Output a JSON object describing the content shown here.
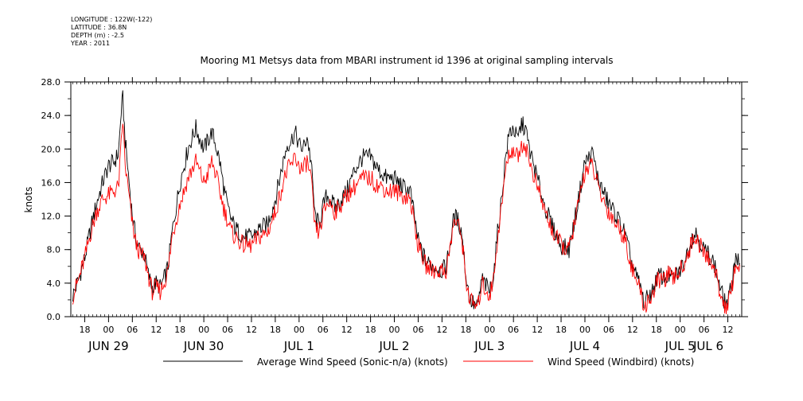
{
  "meta": {
    "longitude": "LONGITUDE : 122W(-122)",
    "latitude": "LATITUDE : 36.8N",
    "depth": "DEPTH (m) : -2.5",
    "year": "YEAR : 2011"
  },
  "chart_data": {
    "type": "line",
    "title": "Mooring M1 Metsys data from MBARI instrument id 1396 at original sampling intervals",
    "ylabel": "knots",
    "xlabel": "",
    "ylim": [
      0,
      28
    ],
    "yticks": [
      0,
      4,
      8,
      12,
      16,
      20,
      24,
      28
    ],
    "ytick_labels": [
      "0.0",
      "4.0",
      "8.0",
      "12.0",
      "16.0",
      "20.0",
      "24.0",
      "28.0"
    ],
    "x_unit": "hours since JUN 29 00:00 (2011)",
    "xlim": [
      -9.5,
      159.5
    ],
    "xticks": [
      {
        "x": -6,
        "label": "18"
      },
      {
        "x": 0,
        "label": "00"
      },
      {
        "x": 6,
        "label": "06"
      },
      {
        "x": 12,
        "label": "12"
      },
      {
        "x": 18,
        "label": "18"
      },
      {
        "x": 24,
        "label": "00"
      },
      {
        "x": 30,
        "label": "06"
      },
      {
        "x": 36,
        "label": "12"
      },
      {
        "x": 42,
        "label": "18"
      },
      {
        "x": 48,
        "label": "00"
      },
      {
        "x": 54,
        "label": "06"
      },
      {
        "x": 60,
        "label": "12"
      },
      {
        "x": 66,
        "label": "18"
      },
      {
        "x": 72,
        "label": "00"
      },
      {
        "x": 78,
        "label": "06"
      },
      {
        "x": 84,
        "label": "12"
      },
      {
        "x": 90,
        "label": "18"
      },
      {
        "x": 96,
        "label": "00"
      },
      {
        "x": 102,
        "label": "06"
      },
      {
        "x": 108,
        "label": "12"
      },
      {
        "x": 114,
        "label": "18"
      },
      {
        "x": 120,
        "label": "00"
      },
      {
        "x": 126,
        "label": "06"
      },
      {
        "x": 132,
        "label": "12"
      },
      {
        "x": 138,
        "label": "18"
      },
      {
        "x": 144,
        "label": "00"
      },
      {
        "x": 150,
        "label": "06"
      },
      {
        "x": 156,
        "label": "12"
      }
    ],
    "date_labels": [
      {
        "x": 0,
        "label": "JUN 29"
      },
      {
        "x": 24,
        "label": "JUN 30"
      },
      {
        "x": 48,
        "label": "JUL  1"
      },
      {
        "x": 72,
        "label": "JUL  2"
      },
      {
        "x": 96,
        "label": "JUL  3"
      },
      {
        "x": 120,
        "label": "JUL  4"
      },
      {
        "x": 144,
        "label": "JUL  5"
      },
      {
        "x": 168,
        "label": "JUL  6"
      }
    ],
    "series": [
      {
        "name": "Average Wind Speed (Sonic-n/a) (knots)",
        "color": "#000000",
        "x": [
          -9,
          -7.5,
          -6,
          -4.5,
          -3,
          -1.5,
          0,
          1.5,
          2.5,
          3.2,
          3.6,
          4.2,
          5,
          6,
          7,
          8,
          9,
          10,
          11,
          12,
          13,
          14,
          15,
          16,
          18,
          20,
          22,
          24,
          25,
          26,
          27,
          28,
          29,
          30,
          31,
          32,
          34,
          36,
          38,
          40,
          42,
          44,
          45,
          46,
          47,
          48,
          49,
          50,
          51,
          52,
          53,
          54,
          55,
          56,
          57,
          58,
          60,
          62,
          64,
          66,
          68,
          69,
          70,
          72,
          74,
          76,
          78,
          80,
          82,
          84,
          85,
          86,
          87,
          88,
          89,
          90,
          91,
          92,
          93,
          94,
          96,
          97,
          98,
          99,
          100,
          101,
          102,
          103,
          104,
          105,
          106,
          108,
          110,
          112,
          114,
          116,
          118,
          120,
          122,
          123,
          124,
          125,
          126,
          128,
          130,
          132,
          134,
          135,
          136,
          137,
          138,
          139,
          140,
          141,
          142,
          143,
          144,
          145,
          146,
          147,
          148,
          149,
          150,
          151,
          152,
          153,
          154,
          155,
          156,
          157,
          158,
          159
        ],
        "values": [
          2.5,
          4.5,
          7.0,
          10.5,
          13.5,
          16.0,
          18.0,
          18.5,
          19.5,
          24.5,
          26.0,
          21.0,
          17.0,
          12.0,
          9.0,
          8.0,
          7.5,
          5.0,
          3.5,
          4.0,
          3.5,
          4.5,
          6.0,
          10.0,
          16.0,
          20.0,
          22.5,
          20.0,
          21.0,
          22.0,
          20.5,
          18.5,
          15.5,
          13.0,
          11.5,
          10.5,
          9.5,
          9.5,
          10.5,
          11.0,
          14.0,
          18.5,
          20.5,
          21.0,
          22.0,
          20.5,
          20.0,
          21.5,
          18.5,
          12.0,
          11.0,
          13.0,
          14.5,
          14.0,
          13.0,
          13.5,
          15.0,
          17.5,
          19.0,
          19.0,
          17.5,
          17.0,
          16.5,
          16.5,
          15.5,
          15.0,
          9.0,
          6.5,
          6.0,
          5.5,
          6.0,
          8.5,
          12.0,
          11.5,
          10.0,
          5.0,
          2.0,
          1.5,
          1.0,
          4.5,
          3.0,
          5.0,
          10.0,
          14.0,
          19.0,
          22.0,
          22.5,
          21.0,
          23.0,
          22.5,
          20.0,
          16.5,
          13.0,
          10.5,
          8.5,
          8.0,
          13.0,
          18.5,
          19.5,
          17.0,
          15.5,
          14.5,
          13.5,
          12.0,
          10.0,
          6.0,
          3.5,
          1.5,
          2.5,
          3.0,
          4.5,
          5.0,
          4.5,
          5.0,
          4.5,
          5.0,
          5.5,
          6.5,
          8.0,
          9.5,
          10.0,
          9.0,
          8.0,
          7.5,
          7.0,
          5.5,
          3.5,
          2.0,
          1.5,
          4.0,
          7.5,
          6.0
        ]
      },
      {
        "name": "Wind Speed (Windbird) (knots)",
        "color": "#ff0000",
        "x": [
          -9,
          -7.5,
          -6,
          -4.5,
          -3,
          -1.5,
          0,
          1.5,
          2.5,
          3.2,
          3.6,
          4.2,
          5,
          6,
          7,
          8,
          9,
          10,
          11,
          12,
          13,
          14,
          15,
          16,
          18,
          20,
          22,
          24,
          25,
          26,
          27,
          28,
          29,
          30,
          31,
          32,
          34,
          36,
          38,
          40,
          42,
          44,
          45,
          46,
          47,
          48,
          49,
          50,
          51,
          52,
          53,
          54,
          55,
          56,
          57,
          58,
          60,
          62,
          64,
          66,
          68,
          69,
          70,
          72,
          74,
          76,
          78,
          80,
          82,
          84,
          85,
          86,
          87,
          88,
          89,
          90,
          91,
          92,
          93,
          94,
          96,
          97,
          98,
          99,
          100,
          101,
          102,
          103,
          104,
          105,
          106,
          108,
          110,
          112,
          114,
          116,
          118,
          120,
          122,
          123,
          124,
          125,
          126,
          128,
          130,
          132,
          134,
          135,
          136,
          137,
          138,
          139,
          140,
          141,
          142,
          143,
          144,
          145,
          146,
          147,
          148,
          149,
          150,
          151,
          152,
          153,
          154,
          155,
          156,
          157,
          158,
          159
        ],
        "values": [
          2.5,
          4.5,
          7.0,
          10.0,
          12.5,
          14.0,
          14.5,
          15.0,
          15.5,
          20.5,
          23.5,
          18.0,
          15.0,
          11.0,
          8.5,
          7.5,
          7.0,
          5.0,
          3.0,
          3.5,
          3.0,
          4.0,
          5.5,
          9.5,
          13.5,
          16.5,
          18.5,
          16.0,
          17.0,
          18.5,
          17.0,
          15.0,
          13.0,
          11.5,
          10.0,
          9.5,
          8.5,
          8.5,
          9.5,
          10.0,
          12.5,
          16.0,
          17.5,
          18.0,
          19.0,
          18.0,
          17.5,
          18.5,
          16.5,
          10.5,
          10.0,
          12.0,
          13.5,
          13.5,
          12.5,
          13.0,
          14.5,
          15.5,
          16.5,
          16.5,
          15.5,
          15.5,
          15.0,
          15.0,
          14.5,
          14.0,
          8.5,
          6.0,
          5.5,
          5.5,
          5.5,
          8.0,
          11.5,
          11.0,
          9.5,
          4.5,
          2.0,
          1.5,
          1.0,
          4.0,
          2.5,
          4.5,
          9.5,
          13.0,
          17.5,
          19.5,
          20.0,
          19.0,
          20.5,
          20.5,
          18.5,
          15.5,
          12.5,
          10.0,
          8.5,
          8.0,
          12.5,
          17.5,
          18.0,
          16.0,
          14.5,
          13.5,
          12.5,
          11.0,
          9.5,
          5.5,
          3.0,
          1.0,
          2.0,
          2.5,
          4.0,
          4.5,
          4.5,
          5.0,
          4.5,
          5.0,
          5.5,
          6.5,
          7.5,
          9.0,
          9.5,
          8.5,
          7.5,
          7.0,
          6.5,
          5.0,
          3.0,
          1.5,
          1.0,
          3.5,
          6.5,
          5.5
        ]
      }
    ],
    "grid": false,
    "legend_position": "bottom"
  }
}
